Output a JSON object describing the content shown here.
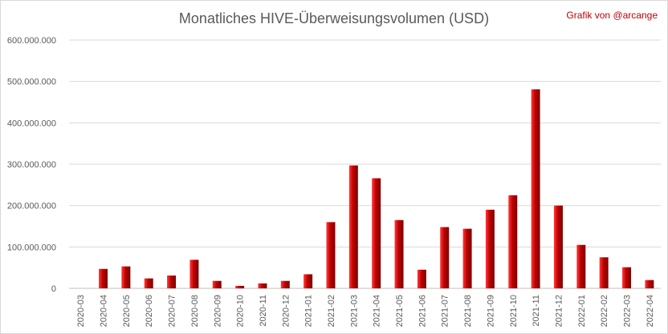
{
  "credit": {
    "text": "Grafik von @arcange",
    "color": "#c00000"
  },
  "chart_data": {
    "type": "bar",
    "title": "Monatliches HIVE-Überweisungsvolumen (USD)",
    "xlabel": "",
    "ylabel": "",
    "ylim": [
      0,
      600000000
    ],
    "yticks": [
      0,
      100000000,
      200000000,
      300000000,
      400000000,
      500000000,
      600000000
    ],
    "ytick_labels": [
      "0",
      "100.000.000",
      "200.000.000",
      "300.000.000",
      "400.000.000",
      "500.000.000",
      "600.000.000"
    ],
    "grid": true,
    "legend": "none",
    "bar_color": "#c00000",
    "categories": [
      "2020-03",
      "2020-04",
      "2020-05",
      "2020-06",
      "2020-07",
      "2020-08",
      "2020-09",
      "2020-10",
      "2020-11",
      "2020-12",
      "2021-01",
      "2021-02",
      "2021-03",
      "2021-04",
      "2021-05",
      "2021-06",
      "2021-07",
      "2021-08",
      "2021-09",
      "2021-10",
      "2021-11",
      "2021-12",
      "2022-01",
      "2022-02",
      "2022-03",
      "2022-04"
    ],
    "values": [
      0,
      47000000,
      53000000,
      24000000,
      31000000,
      69000000,
      18000000,
      6000000,
      12000000,
      18000000,
      34000000,
      160000000,
      297000000,
      266000000,
      165000000,
      45000000,
      148000000,
      144000000,
      190000000,
      225000000,
      481000000,
      200000000,
      105000000,
      75000000,
      51000000,
      20000000
    ]
  }
}
